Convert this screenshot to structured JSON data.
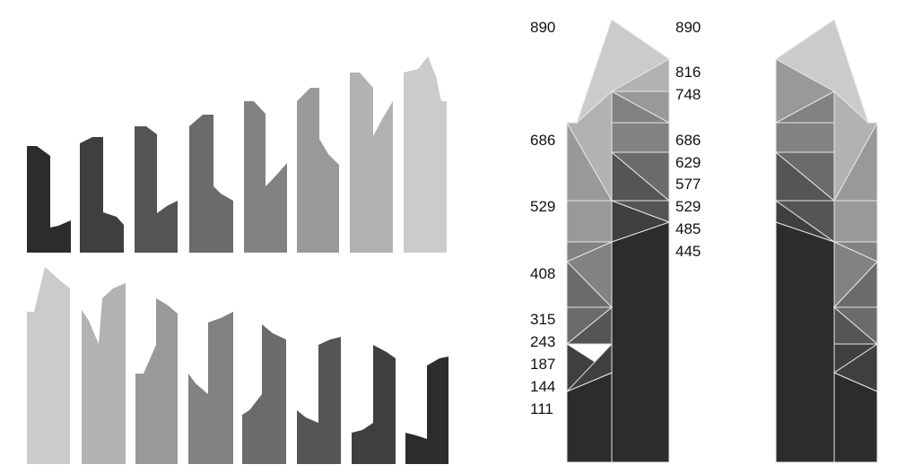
{
  "palette": {
    "level_0": "#2c2c2c",
    "level_1": "#3f3f3f",
    "level_2": "#555555",
    "level_3": "#6b6b6b",
    "level_4": "#828282",
    "level_5": "#999999",
    "level_6": "#b2b2b2",
    "level_7": "#cbcbcb",
    "facet_stroke": "#e6e6e6"
  },
  "left_labels": [
    "890",
    "686",
    "529",
    "408",
    "315",
    "243",
    "187",
    "144",
    "111"
  ],
  "right_labels": [
    "890",
    "816",
    "748",
    "686",
    "629",
    "577",
    "529",
    "485",
    "445"
  ],
  "rows": {
    "top": {
      "count": 8,
      "shade_order": "dark-to-light"
    },
    "bottom": {
      "count": 8,
      "shade_order": "light-to-dark"
    }
  }
}
